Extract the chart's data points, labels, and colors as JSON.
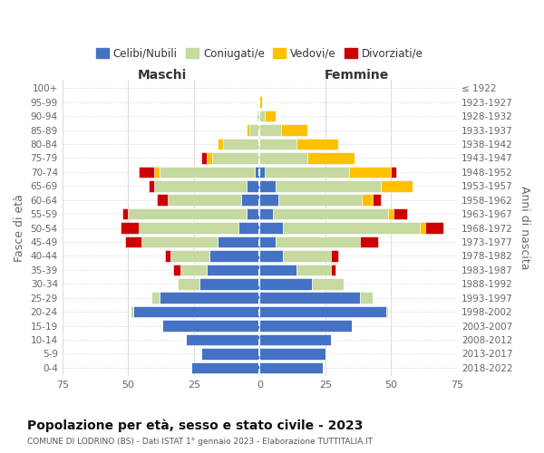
{
  "age_groups": [
    "0-4",
    "5-9",
    "10-14",
    "15-19",
    "20-24",
    "25-29",
    "30-34",
    "35-39",
    "40-44",
    "45-49",
    "50-54",
    "55-59",
    "60-64",
    "65-69",
    "70-74",
    "75-79",
    "80-84",
    "85-89",
    "90-94",
    "95-99",
    "100+"
  ],
  "birth_years": [
    "2018-2022",
    "2013-2017",
    "2008-2012",
    "2003-2007",
    "1998-2002",
    "1993-1997",
    "1988-1992",
    "1983-1987",
    "1978-1982",
    "1973-1977",
    "1968-1972",
    "1963-1967",
    "1958-1962",
    "1953-1957",
    "1948-1952",
    "1943-1947",
    "1938-1942",
    "1933-1937",
    "1928-1932",
    "1923-1927",
    "≤ 1922"
  ],
  "maschi": {
    "celibi": [
      26,
      22,
      28,
      37,
      48,
      38,
      23,
      20,
      19,
      16,
      8,
      5,
      7,
      5,
      2,
      0,
      0,
      0,
      0,
      0,
      0
    ],
    "coniugati": [
      0,
      0,
      0,
      0,
      1,
      3,
      8,
      10,
      15,
      29,
      38,
      45,
      28,
      35,
      36,
      18,
      14,
      4,
      1,
      0,
      0
    ],
    "vedovi": [
      0,
      0,
      0,
      0,
      0,
      0,
      0,
      0,
      0,
      0,
      0,
      0,
      0,
      0,
      2,
      2,
      2,
      1,
      0,
      0,
      0
    ],
    "divorziati": [
      0,
      0,
      0,
      0,
      0,
      0,
      0,
      3,
      2,
      6,
      7,
      2,
      4,
      2,
      6,
      2,
      0,
      0,
      0,
      0,
      0
    ]
  },
  "femmine": {
    "nubili": [
      24,
      25,
      27,
      35,
      48,
      38,
      20,
      14,
      9,
      6,
      9,
      5,
      7,
      6,
      2,
      0,
      0,
      0,
      0,
      0,
      0
    ],
    "coniugate": [
      0,
      0,
      0,
      0,
      1,
      5,
      12,
      13,
      18,
      32,
      52,
      44,
      32,
      40,
      32,
      18,
      14,
      8,
      2,
      0,
      0
    ],
    "vedove": [
      0,
      0,
      0,
      0,
      0,
      0,
      0,
      0,
      0,
      0,
      2,
      2,
      4,
      12,
      16,
      18,
      16,
      10,
      4,
      1,
      0
    ],
    "divorziate": [
      0,
      0,
      0,
      0,
      0,
      0,
      0,
      2,
      3,
      7,
      7,
      5,
      3,
      0,
      2,
      0,
      0,
      0,
      0,
      0,
      0
    ]
  },
  "colors": {
    "celibi": "#4472c4",
    "coniugati": "#c5d9a0",
    "vedovi": "#ffc000",
    "divorziati": "#cc0000"
  },
  "xlim": 75,
  "title_main": "Popolazione per età, sesso e stato civile - 2023",
  "title_sub": "COMUNE DI LODRINO (BS) - Dati ISTAT 1° gennaio 2023 - Elaborazione TUTTITALIA.IT",
  "ylabel_left": "Fasce di età",
  "ylabel_right": "Anni di nascita",
  "xlabel_left": "Maschi",
  "xlabel_right": "Femmine",
  "legend_labels": [
    "Celibi/Nubili",
    "Coniugati/e",
    "Vedovi/e",
    "Divorziati/e"
  ],
  "background_color": "#ffffff",
  "bar_height": 0.82
}
